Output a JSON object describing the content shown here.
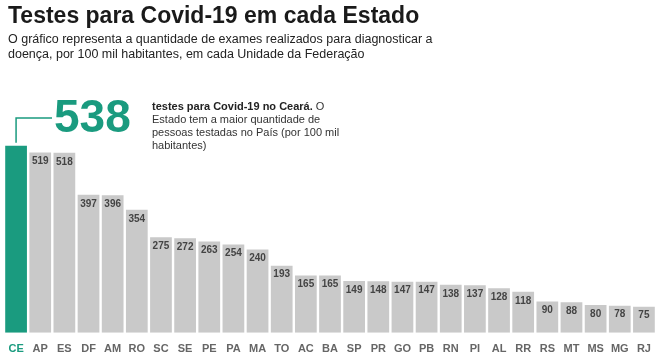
{
  "chart_data": {
    "type": "bar",
    "title": "Testes para Covid-19 em cada Estado",
    "subtitle": "O gráfico representa a quantidade de exames realizados para diagnosticar a doença, por 100 mil habitantes, em cada Unidade da Federação",
    "annotation": {
      "category": "CE",
      "value": 538,
      "text": "testes para Covid-19 no Ceará.",
      "note": "O Estado tem a maior quantidade de pessoas testadas no País (por 100 mil habitantes)"
    },
    "categories": [
      "CE",
      "AP",
      "ES",
      "DF",
      "AM",
      "RO",
      "SC",
      "SE",
      "PE",
      "PA",
      "MA",
      "TO",
      "AC",
      "BA",
      "SP",
      "PR",
      "GO",
      "PB",
      "RN",
      "PI",
      "AL",
      "RR",
      "RS",
      "MT",
      "MS",
      "MG",
      "RJ"
    ],
    "values": [
      538,
      519,
      518,
      397,
      396,
      354,
      275,
      272,
      263,
      254,
      240,
      193,
      165,
      165,
      149,
      148,
      147,
      147,
      138,
      137,
      128,
      118,
      90,
      88,
      80,
      78,
      75
    ],
    "colors": [
      "#1a9b7f",
      "#c9c9c9",
      "#c9c9c9",
      "#c9c9c9",
      "#c9c9c9",
      "#c9c9c9",
      "#c9c9c9",
      "#c9c9c9",
      "#c9c9c9",
      "#c9c9c9",
      "#c9c9c9",
      "#c9c9c9",
      "#c9c9c9",
      "#c9c9c9",
      "#c9c9c9",
      "#c9c9c9",
      "#c9c9c9",
      "#c9c9c9",
      "#c9c9c9",
      "#c9c9c9",
      "#c9c9c9",
      "#c9c9c9",
      "#c9c9c9",
      "#c9c9c9",
      "#c9c9c9",
      "#c9c9c9",
      "#c9c9c9"
    ],
    "ylim": [
      0,
      900
    ],
    "yticks": [
      0,
      300,
      600,
      900
    ],
    "grid": false,
    "data_labels": true,
    "tick_labels": "x"
  }
}
